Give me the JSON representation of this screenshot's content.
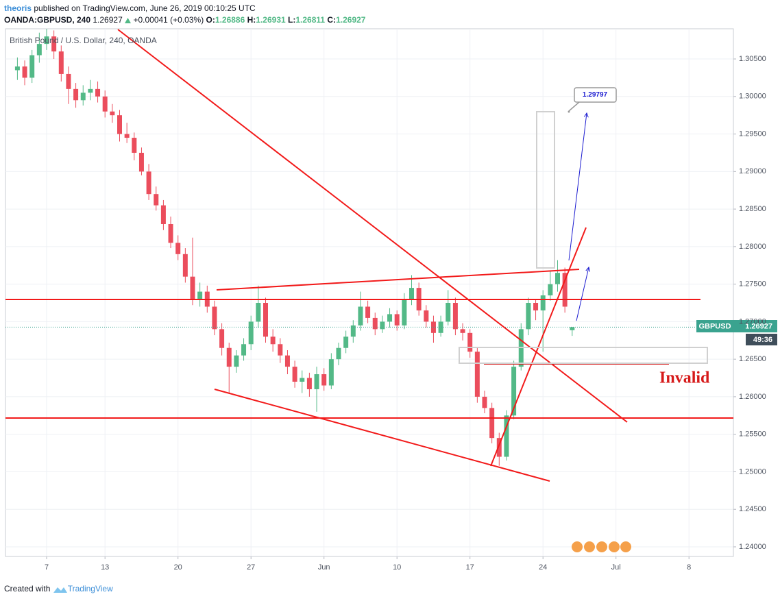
{
  "header": {
    "author": "theoris",
    "published": "published on TradingView.com, June 26, 2019 00:10:25 UTC",
    "symbol": "OANDA:GBPUSD, 240",
    "change": "+0.00041 (+0.03%)",
    "o_label": "O:",
    "h_label": "H:",
    "l_label": "L:",
    "c_label": "C:"
  },
  "chart_data": {
    "type": "candlestick",
    "title": "British Pound / U.S. Dollar, 240, OANDA",
    "categories": [
      null,
      null,
      null,
      null,
      "7",
      null,
      null,
      null,
      null,
      null,
      null,
      null,
      "13",
      null,
      null,
      null,
      null,
      null,
      null,
      null,
      null,
      null,
      "20",
      null,
      null,
      null,
      null,
      null,
      null,
      null,
      null,
      null,
      "27",
      null,
      null,
      null,
      null,
      null,
      null,
      null,
      null,
      null,
      "Jun",
      null,
      null,
      null,
      null,
      null,
      null,
      null,
      null,
      null,
      "10",
      null,
      null,
      null,
      null,
      null,
      null,
      null,
      null,
      null,
      "17",
      null,
      null,
      null,
      null,
      null,
      null,
      null,
      null,
      null,
      "24",
      null,
      null,
      null,
      null,
      null,
      null,
      null,
      null,
      null,
      "Jul",
      null,
      null,
      null,
      null,
      null,
      null,
      null,
      null,
      null,
      "8",
      null,
      null,
      null
    ],
    "ohlc": [
      [
        1.3035,
        1.3052,
        1.3022,
        1.304
      ],
      [
        1.304,
        1.3048,
        1.3015,
        1.3025
      ],
      [
        1.3025,
        1.3062,
        1.3018,
        1.3055
      ],
      [
        1.3055,
        1.3085,
        1.3045,
        1.307
      ],
      [
        1.307,
        1.3092,
        1.3062,
        1.308
      ],
      [
        1.308,
        1.3088,
        1.305,
        1.306
      ],
      [
        1.306,
        1.3068,
        1.302,
        1.303
      ],
      [
        1.303,
        1.304,
        1.299,
        1.301
      ],
      [
        1.301,
        1.3018,
        1.2985,
        1.2995
      ],
      [
        1.2995,
        1.3015,
        1.2988,
        1.3005
      ],
      [
        1.3005,
        1.3022,
        1.2995,
        1.301
      ],
      [
        1.301,
        1.302,
        1.2992,
        1.3
      ],
      [
        1.3,
        1.3008,
        1.2972,
        1.298
      ],
      [
        1.298,
        1.299,
        1.2965,
        1.2975
      ],
      [
        1.2975,
        1.2982,
        1.294,
        1.295
      ],
      [
        1.295,
        1.2965,
        1.2938,
        1.2945
      ],
      [
        1.2945,
        1.2952,
        1.2915,
        1.2925
      ],
      [
        1.2925,
        1.2932,
        1.2895,
        1.29
      ],
      [
        1.29,
        1.291,
        1.2862,
        1.287
      ],
      [
        1.287,
        1.288,
        1.2848,
        1.2855
      ],
      [
        1.2855,
        1.2862,
        1.2822,
        1.283
      ],
      [
        1.283,
        1.284,
        1.2798,
        1.2805
      ],
      [
        1.2805,
        1.2815,
        1.2782,
        1.279
      ],
      [
        1.279,
        1.2798,
        1.2752,
        1.276
      ],
      [
        1.276,
        1.2812,
        1.2722,
        1.273
      ],
      [
        1.273,
        1.2752,
        1.272,
        1.274
      ],
      [
        1.274,
        1.2748,
        1.2712,
        1.272
      ],
      [
        1.272,
        1.2728,
        1.2682,
        1.269
      ],
      [
        1.269,
        1.2698,
        1.2655,
        1.2665
      ],
      [
        1.2665,
        1.2672,
        1.2605,
        1.264
      ],
      [
        1.264,
        1.2662,
        1.2632,
        1.2655
      ],
      [
        1.2655,
        1.2678,
        1.2648,
        1.267
      ],
      [
        1.267,
        1.2708,
        1.2662,
        1.27
      ],
      [
        1.27,
        1.2748,
        1.2692,
        1.2725
      ],
      [
        1.2725,
        1.2732,
        1.2672,
        1.268
      ],
      [
        1.268,
        1.269,
        1.266,
        1.267
      ],
      [
        1.267,
        1.2678,
        1.2645,
        1.2655
      ],
      [
        1.2655,
        1.2662,
        1.263,
        1.264
      ],
      [
        1.264,
        1.2648,
        1.2612,
        1.262
      ],
      [
        1.262,
        1.2635,
        1.2605,
        1.2625
      ],
      [
        1.2625,
        1.2632,
        1.26,
        1.261
      ],
      [
        1.261,
        1.264,
        1.258,
        1.263
      ],
      [
        1.263,
        1.2638,
        1.2608,
        1.2615
      ],
      [
        1.2615,
        1.2658,
        1.261,
        1.265
      ],
      [
        1.265,
        1.2672,
        1.2642,
        1.2665
      ],
      [
        1.2665,
        1.2688,
        1.2658,
        1.268
      ],
      [
        1.268,
        1.2702,
        1.2672,
        1.2695
      ],
      [
        1.2695,
        1.274,
        1.2688,
        1.272
      ],
      [
        1.272,
        1.2728,
        1.2698,
        1.2705
      ],
      [
        1.2705,
        1.2712,
        1.2682,
        1.269
      ],
      [
        1.269,
        1.2708,
        1.2685,
        1.27
      ],
      [
        1.27,
        1.2718,
        1.2692,
        1.271
      ],
      [
        1.271,
        1.2715,
        1.2688,
        1.2695
      ],
      [
        1.2695,
        1.2738,
        1.269,
        1.273
      ],
      [
        1.273,
        1.2762,
        1.2722,
        1.2745
      ],
      [
        1.2745,
        1.2752,
        1.2708,
        1.2715
      ],
      [
        1.2715,
        1.2722,
        1.2692,
        1.27
      ],
      [
        1.27,
        1.2708,
        1.2672,
        1.2685
      ],
      [
        1.2685,
        1.2708,
        1.268,
        1.27
      ],
      [
        1.27,
        1.2742,
        1.2695,
        1.2725
      ],
      [
        1.2725,
        1.2732,
        1.2682,
        1.269
      ],
      [
        1.269,
        1.2698,
        1.2675,
        1.2685
      ],
      [
        1.2685,
        1.269,
        1.2652,
        1.266
      ],
      [
        1.266,
        1.2665,
        1.2592,
        1.26
      ],
      [
        1.26,
        1.2608,
        1.2578,
        1.2585
      ],
      [
        1.2585,
        1.2592,
        1.2538,
        1.2545
      ],
      [
        1.2545,
        1.2552,
        1.2508,
        1.252
      ],
      [
        1.252,
        1.2582,
        1.2515,
        1.2575
      ],
      [
        1.2575,
        1.2648,
        1.257,
        1.264
      ],
      [
        1.264,
        1.2698,
        1.2635,
        1.269
      ],
      [
        1.269,
        1.2732,
        1.2682,
        1.2725
      ],
      [
        1.2725,
        1.273,
        1.2702,
        1.2715
      ],
      [
        1.2715,
        1.2742,
        1.266,
        1.2735
      ],
      [
        1.2735,
        1.2768,
        1.2728,
        1.275
      ],
      [
        1.275,
        1.2782,
        1.274,
        1.2765
      ],
      [
        1.2765,
        1.2772,
        1.2712,
        1.272
      ],
      [
        1.26886,
        1.26931,
        1.26811,
        1.26927
      ],
      null,
      null,
      null,
      null,
      null,
      null,
      null,
      null,
      null,
      null,
      null,
      null,
      null,
      null,
      null,
      null,
      null,
      null,
      null
    ],
    "up_color": "#53b987",
    "down_color": "#eb4d5c",
    "ylim": [
      1.23872,
      1.30902
    ],
    "yticks": [
      {
        "value": 1.24,
        "label": "1.24000"
      },
      {
        "value": 1.245,
        "label": "1.24500"
      },
      {
        "value": 1.25,
        "label": "1.25000"
      },
      {
        "value": 1.255,
        "label": "1.25500"
      },
      {
        "value": 1.26,
        "label": "1.26000"
      },
      {
        "value": 1.265,
        "label": "1.26500"
      },
      {
        "value": 1.27,
        "label": "1.27000"
      },
      {
        "value": 1.275,
        "label": "1.27500"
      },
      {
        "value": 1.28,
        "label": "1.28000"
      },
      {
        "value": 1.285,
        "label": "1.28500"
      },
      {
        "value": 1.29,
        "label": "1.29000"
      },
      {
        "value": 1.295,
        "label": "1.29500"
      },
      {
        "value": 1.3,
        "label": "1.30000"
      },
      {
        "value": 1.305,
        "label": "1.30500"
      }
    ],
    "grid": true,
    "target": 1.29797,
    "invalid_label": "Invalid",
    "symbol_label": "GBPUSD",
    "countdown": "49:36"
  },
  "footer": {
    "created": "Created with",
    "brand": "TradingView"
  }
}
